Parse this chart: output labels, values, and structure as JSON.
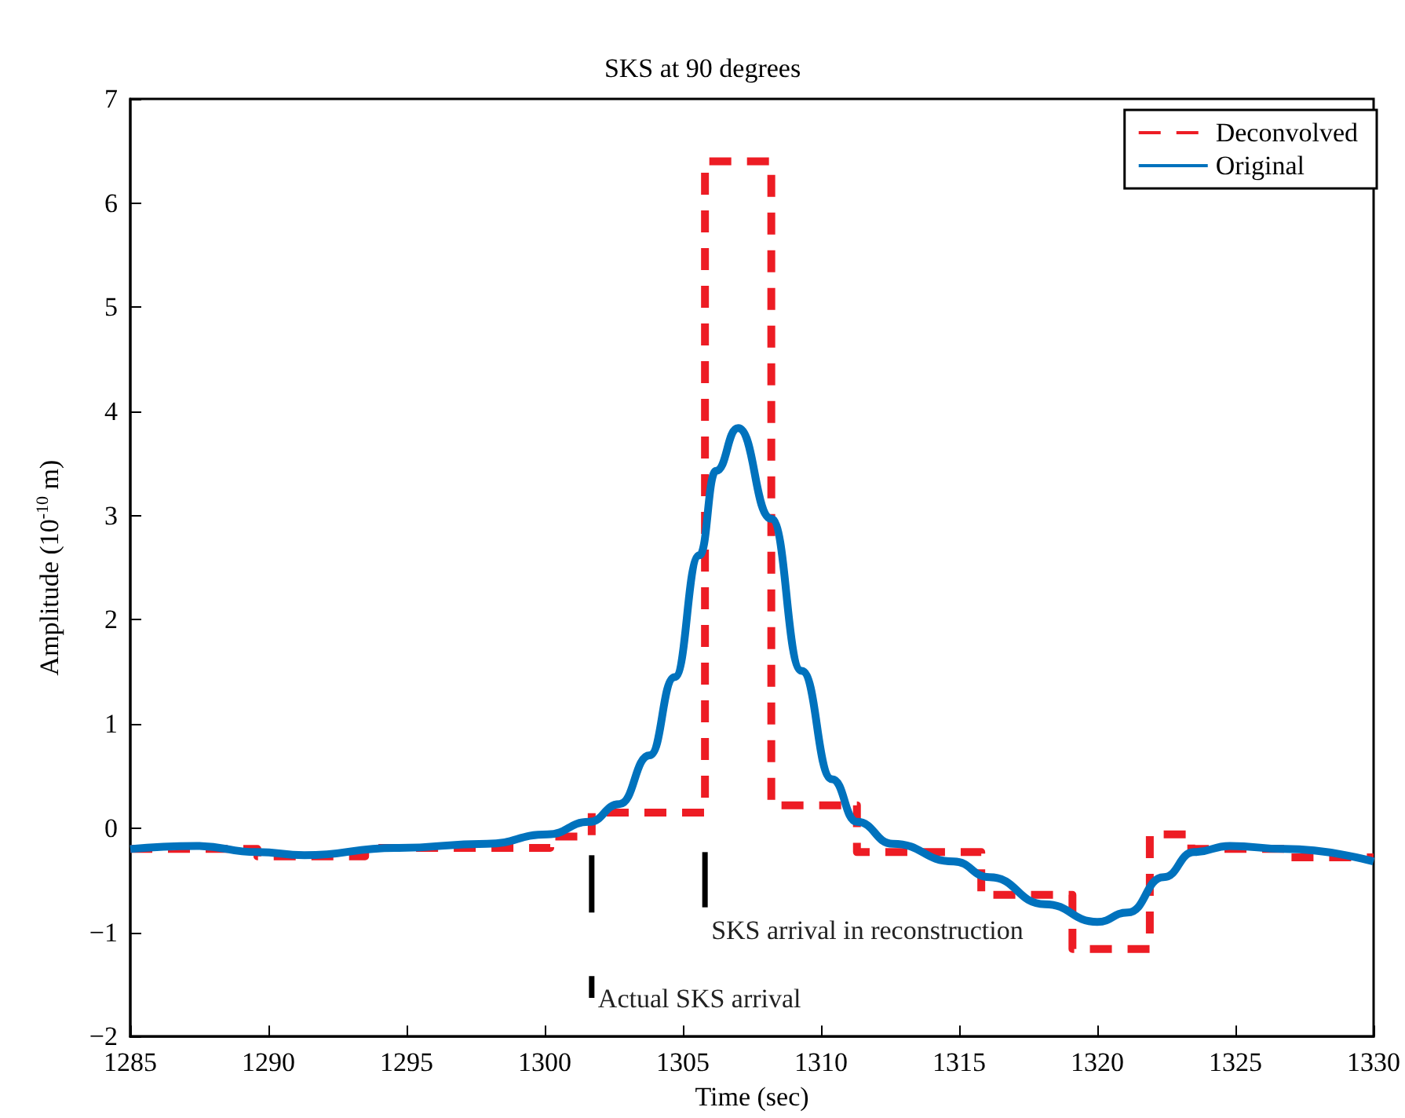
{
  "chart_data": {
    "type": "line",
    "title": "SKS at 90 degrees",
    "xlabel": "Time (sec)",
    "ylabel": "Amplitude (10$^{-10}$ m)",
    "xlim": [
      1285,
      1330
    ],
    "xticks": [
      1285,
      1290,
      1295,
      1300,
      1305,
      1310,
      1315,
      1320,
      1325,
      1330
    ],
    "ylim": [
      -2,
      7
    ],
    "yticks": [
      {
        "value": -2,
        "label": "−2"
      },
      {
        "value": -1,
        "label": "−1"
      },
      0,
      1,
      2,
      3,
      4,
      5,
      6,
      7
    ],
    "grid": false,
    "legend": "top right",
    "marker": "none",
    "series": [
      {
        "name": "Deconvolved",
        "color": "#ed1c24",
        "line_style": "dashed",
        "x": [
          1285,
          1289.6,
          1289.6,
          1293.5,
          1293.5,
          1300.2,
          1300.2,
          1301.7,
          1301.7,
          1305.8,
          1305.8,
          1308.2,
          1308.2,
          1311.3,
          1311.3,
          1315.8,
          1315.8,
          1319.1,
          1319.1,
          1321.9,
          1321.9,
          1323.4,
          1323.4,
          1327,
          1327,
          1330
        ],
        "values": [
          -0.2,
          -0.2,
          -0.27,
          -0.27,
          -0.19,
          -0.19,
          -0.08,
          -0.08,
          0.15,
          0.15,
          6.4,
          6.4,
          0.22,
          0.22,
          -0.23,
          -0.23,
          -0.64,
          -0.64,
          -1.16,
          -1.16,
          -0.06,
          -0.06,
          -0.2,
          -0.2,
          -0.28,
          -0.28
        ]
      },
      {
        "name": "Original",
        "color": "#0072bd",
        "line_style": "solid",
        "x": [
          1285,
          1287.4,
          1289.6,
          1291.3,
          1294.6,
          1297.9,
          1300.1,
          1301.6,
          1302.7,
          1303.8,
          1304.7,
          1305.6,
          1306.2,
          1307.0,
          1308.2,
          1309.3,
          1310.4,
          1311.3,
          1312.6,
          1314.8,
          1316.1,
          1318.1,
          1320.0,
          1321.1,
          1322.4,
          1323.5,
          1324.8,
          1326.8,
          1330
        ],
        "values": [
          -0.2,
          -0.17,
          -0.23,
          -0.26,
          -0.19,
          -0.15,
          -0.06,
          0.06,
          0.23,
          0.7,
          1.45,
          2.62,
          3.43,
          3.84,
          2.97,
          1.51,
          0.47,
          0.06,
          -0.15,
          -0.32,
          -0.47,
          -0.73,
          -0.9,
          -0.81,
          -0.47,
          -0.23,
          -0.17,
          -0.2,
          -0.32
        ]
      },
      {
        "color": "#000000",
        "line_style": "solid",
        "x": [
          1301.7,
          1301.7
        ],
        "values": [
          -0.26,
          -0.81
        ]
      },
      {
        "color": "#000000",
        "line_style": "solid",
        "x": [
          1305.8,
          1305.8
        ],
        "values": [
          -0.23,
          -0.76
        ]
      },
      {
        "color": "#000000",
        "line_style": "solid",
        "x": [
          1301.7,
          1301.7
        ],
        "values": [
          -1.42,
          -1.63
        ]
      }
    ],
    "annotations": [
      {
        "text": "SKS arrival in reconstruction",
        "x": 1305.8,
        "y": -0.76
      },
      {
        "text": "Actual SKS arrival",
        "x": 1301.7,
        "y": -1.42
      }
    ]
  }
}
